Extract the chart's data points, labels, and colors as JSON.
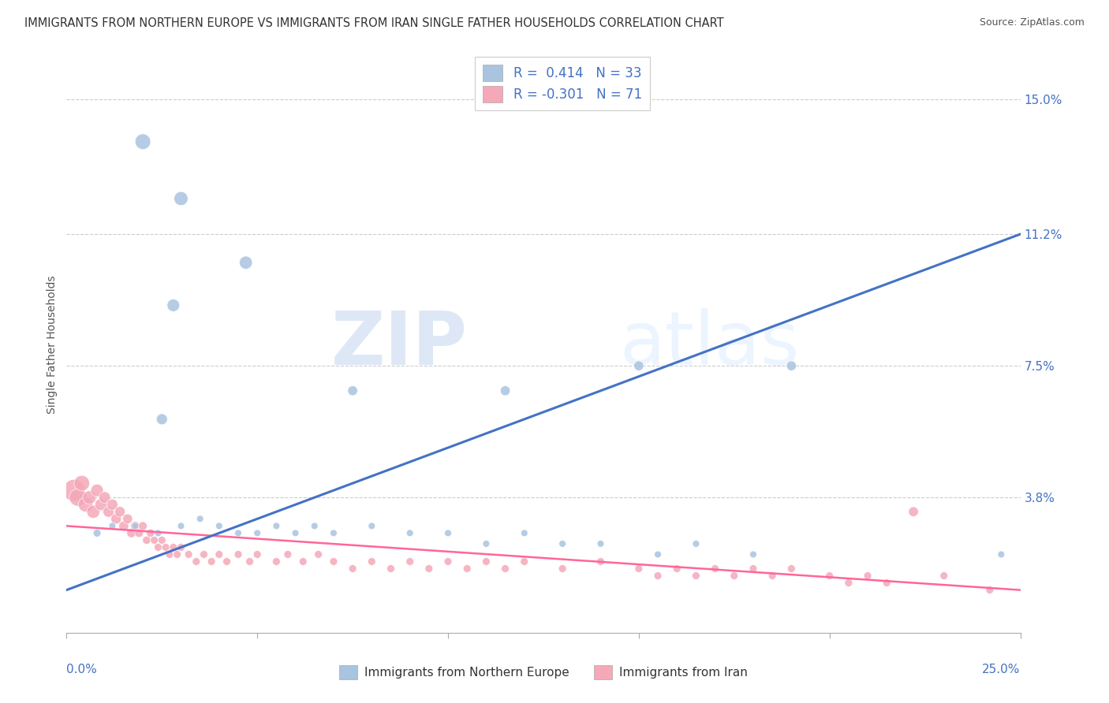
{
  "title": "IMMIGRANTS FROM NORTHERN EUROPE VS IMMIGRANTS FROM IRAN SINGLE FATHER HOUSEHOLDS CORRELATION CHART",
  "source": "Source: ZipAtlas.com",
  "ylabel": "Single Father Households",
  "ytick_labels": [
    "15.0%",
    "11.2%",
    "7.5%",
    "3.8%"
  ],
  "ytick_values": [
    0.15,
    0.112,
    0.075,
    0.038
  ],
  "xlim": [
    0.0,
    0.25
  ],
  "ylim": [
    0.0,
    0.162
  ],
  "legend_blue_r": "R =  0.414",
  "legend_blue_n": "N = 33",
  "legend_pink_r": "R = -0.301",
  "legend_pink_n": "N = 71",
  "blue_color": "#A8C4E0",
  "pink_color": "#F4A8B8",
  "blue_line_color": "#4472C4",
  "pink_line_color": "#FF6699",
  "blue_scatter": [
    [
      0.02,
      0.138
    ],
    [
      0.03,
      0.122
    ],
    [
      0.047,
      0.104
    ],
    [
      0.028,
      0.092
    ],
    [
      0.025,
      0.06
    ],
    [
      0.075,
      0.068
    ],
    [
      0.115,
      0.068
    ],
    [
      0.15,
      0.075
    ],
    [
      0.19,
      0.075
    ],
    [
      0.008,
      0.028
    ],
    [
      0.012,
      0.03
    ],
    [
      0.018,
      0.03
    ],
    [
      0.024,
      0.028
    ],
    [
      0.03,
      0.03
    ],
    [
      0.035,
      0.032
    ],
    [
      0.04,
      0.03
    ],
    [
      0.045,
      0.028
    ],
    [
      0.05,
      0.028
    ],
    [
      0.055,
      0.03
    ],
    [
      0.06,
      0.028
    ],
    [
      0.065,
      0.03
    ],
    [
      0.07,
      0.028
    ],
    [
      0.08,
      0.03
    ],
    [
      0.09,
      0.028
    ],
    [
      0.1,
      0.028
    ],
    [
      0.11,
      0.025
    ],
    [
      0.12,
      0.028
    ],
    [
      0.13,
      0.025
    ],
    [
      0.14,
      0.025
    ],
    [
      0.155,
      0.022
    ],
    [
      0.165,
      0.025
    ],
    [
      0.18,
      0.022
    ],
    [
      0.245,
      0.022
    ]
  ],
  "blue_sizes": [
    200,
    160,
    140,
    130,
    100,
    80,
    80,
    80,
    80,
    50,
    40,
    40,
    40,
    40,
    40,
    40,
    40,
    40,
    40,
    40,
    40,
    40,
    40,
    40,
    40,
    40,
    40,
    40,
    40,
    40,
    40,
    40,
    40
  ],
  "pink_scatter": [
    [
      0.002,
      0.04
    ],
    [
      0.003,
      0.038
    ],
    [
      0.004,
      0.042
    ],
    [
      0.005,
      0.036
    ],
    [
      0.006,
      0.038
    ],
    [
      0.007,
      0.034
    ],
    [
      0.008,
      0.04
    ],
    [
      0.009,
      0.036
    ],
    [
      0.01,
      0.038
    ],
    [
      0.011,
      0.034
    ],
    [
      0.012,
      0.036
    ],
    [
      0.013,
      0.032
    ],
    [
      0.014,
      0.034
    ],
    [
      0.015,
      0.03
    ],
    [
      0.016,
      0.032
    ],
    [
      0.017,
      0.028
    ],
    [
      0.018,
      0.03
    ],
    [
      0.019,
      0.028
    ],
    [
      0.02,
      0.03
    ],
    [
      0.021,
      0.026
    ],
    [
      0.022,
      0.028
    ],
    [
      0.023,
      0.026
    ],
    [
      0.024,
      0.024
    ],
    [
      0.025,
      0.026
    ],
    [
      0.026,
      0.024
    ],
    [
      0.027,
      0.022
    ],
    [
      0.028,
      0.024
    ],
    [
      0.029,
      0.022
    ],
    [
      0.03,
      0.024
    ],
    [
      0.032,
      0.022
    ],
    [
      0.034,
      0.02
    ],
    [
      0.036,
      0.022
    ],
    [
      0.038,
      0.02
    ],
    [
      0.04,
      0.022
    ],
    [
      0.042,
      0.02
    ],
    [
      0.045,
      0.022
    ],
    [
      0.048,
      0.02
    ],
    [
      0.05,
      0.022
    ],
    [
      0.055,
      0.02
    ],
    [
      0.058,
      0.022
    ],
    [
      0.062,
      0.02
    ],
    [
      0.066,
      0.022
    ],
    [
      0.07,
      0.02
    ],
    [
      0.075,
      0.018
    ],
    [
      0.08,
      0.02
    ],
    [
      0.085,
      0.018
    ],
    [
      0.09,
      0.02
    ],
    [
      0.095,
      0.018
    ],
    [
      0.1,
      0.02
    ],
    [
      0.105,
      0.018
    ],
    [
      0.11,
      0.02
    ],
    [
      0.115,
      0.018
    ],
    [
      0.12,
      0.02
    ],
    [
      0.13,
      0.018
    ],
    [
      0.14,
      0.02
    ],
    [
      0.15,
      0.018
    ],
    [
      0.155,
      0.016
    ],
    [
      0.16,
      0.018
    ],
    [
      0.165,
      0.016
    ],
    [
      0.17,
      0.018
    ],
    [
      0.175,
      0.016
    ],
    [
      0.18,
      0.018
    ],
    [
      0.185,
      0.016
    ],
    [
      0.19,
      0.018
    ],
    [
      0.2,
      0.016
    ],
    [
      0.205,
      0.014
    ],
    [
      0.21,
      0.016
    ],
    [
      0.215,
      0.014
    ],
    [
      0.222,
      0.034
    ],
    [
      0.23,
      0.016
    ],
    [
      0.242,
      0.012
    ]
  ],
  "pink_sizes": [
    400,
    250,
    200,
    180,
    150,
    140,
    130,
    120,
    110,
    100,
    100,
    90,
    90,
    80,
    80,
    70,
    70,
    60,
    60,
    55,
    55,
    50,
    50,
    50,
    50,
    50,
    50,
    50,
    50,
    50,
    50,
    50,
    50,
    50,
    50,
    50,
    50,
    50,
    50,
    50,
    50,
    50,
    50,
    50,
    50,
    50,
    50,
    50,
    50,
    50,
    50,
    50,
    50,
    50,
    50,
    50,
    50,
    50,
    50,
    50,
    50,
    50,
    50,
    50,
    50,
    50,
    50,
    50,
    80,
    50,
    50
  ],
  "blue_trend_x": [
    0.0,
    0.25
  ],
  "blue_trend_y": [
    0.012,
    0.112
  ],
  "pink_trend_x": [
    0.0,
    0.25
  ],
  "pink_trend_y": [
    0.03,
    0.012
  ],
  "watermark_zip": "ZIP",
  "watermark_atlas": "atlas",
  "background_color": "#FFFFFF",
  "grid_color": "#CCCCCC",
  "bottom_legend_blue": "Immigrants from Northern Europe",
  "bottom_legend_pink": "Immigrants from Iran"
}
